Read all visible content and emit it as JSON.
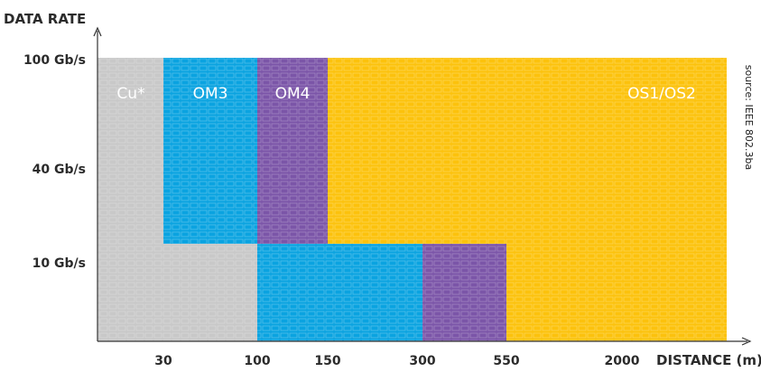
{
  "chart_data": {
    "type": "area",
    "title": "",
    "ylabel": "DATA RATE",
    "xlabel": "DISTANCE (m)",
    "source": "source: IEEE 802.3ba",
    "x_ticks": [
      "30",
      "100",
      "150",
      "300",
      "550",
      "2000"
    ],
    "y_ticks": [
      "10 Gb/s",
      "40 Gb/s",
      "100 Gb/s"
    ],
    "series": [
      {
        "name": "Cu*",
        "color": "#c8c8c8",
        "reach_m": [
          {
            "rate": "100 Gb/s",
            "max_m": 30
          },
          {
            "rate": "40 Gb/s",
            "max_m": 30
          },
          {
            "rate": "10 Gb/s",
            "max_m": 100
          }
        ]
      },
      {
        "name": "OM3",
        "color": "#0aa3e0",
        "reach_m": [
          {
            "rate": "100 Gb/s",
            "max_m": 100
          },
          {
            "rate": "40 Gb/s",
            "max_m": 100
          },
          {
            "rate": "10 Gb/s",
            "max_m": 300
          }
        ]
      },
      {
        "name": "OM4",
        "color": "#7b55a8",
        "reach_m": [
          {
            "rate": "100 Gb/s",
            "max_m": 150
          },
          {
            "rate": "40 Gb/s",
            "max_m": 150
          },
          {
            "rate": "10 Gb/s",
            "max_m": 550
          }
        ]
      },
      {
        "name": "OS1/OS2",
        "color": "#fcc20c",
        "reach_m": [
          {
            "rate": "100 Gb/s",
            "max_m": 2000
          },
          {
            "rate": "40 Gb/s",
            "max_m": 2000
          },
          {
            "rate": "10 Gb/s",
            "max_m": 2000
          }
        ]
      }
    ]
  }
}
